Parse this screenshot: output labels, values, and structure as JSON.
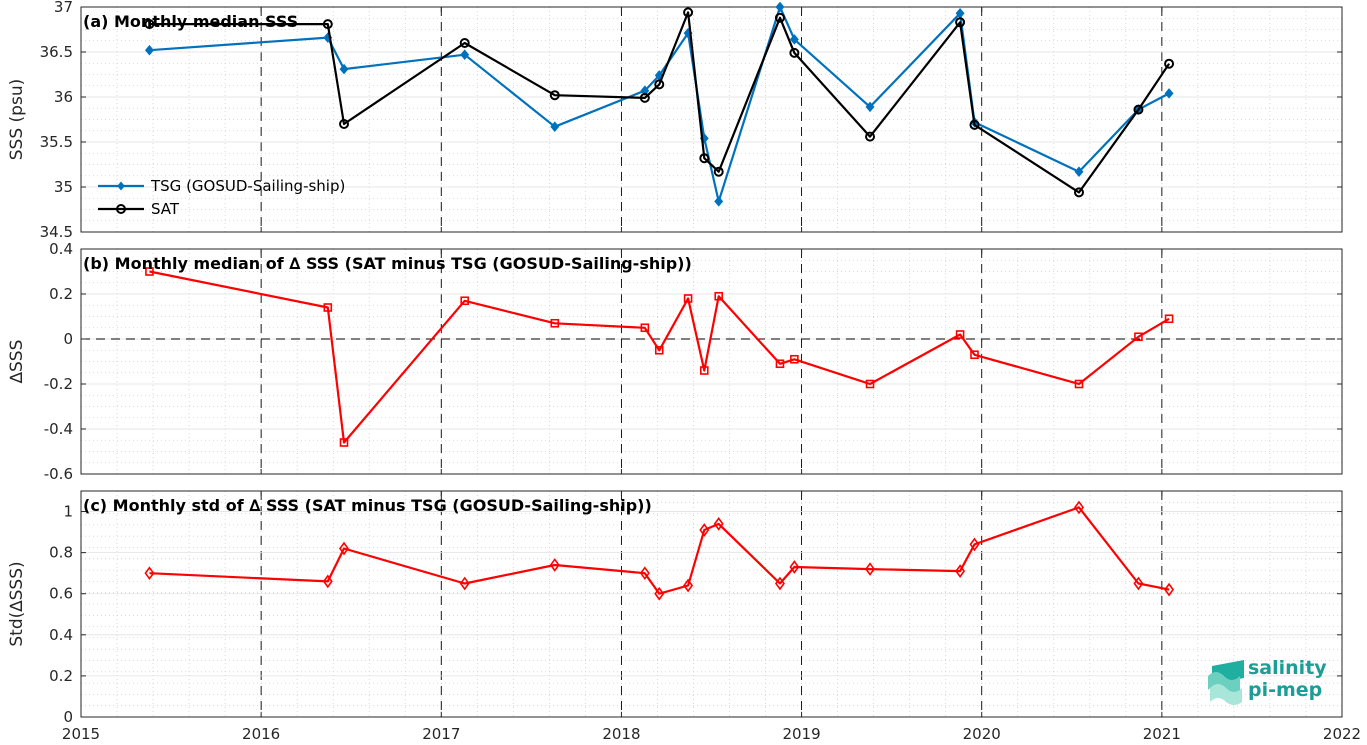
{
  "chart_data": [
    {
      "panel": "a",
      "type": "line",
      "title": "(a) Monthly median SSS",
      "ylabel": "SSS (psu)",
      "xlim": [
        2015,
        2022
      ],
      "ylim": [
        34.5,
        37
      ],
      "yticks": [
        34.5,
        35,
        35.5,
        36,
        36.5,
        37
      ],
      "ytick_labels": [
        "34.5",
        "35",
        "35.5",
        "36",
        "36.5",
        "37"
      ],
      "grid": true,
      "legend_position": "lower-left",
      "series": [
        {
          "name": "TSG (GOSUD-Sailing-ship)",
          "color": "#0072bd",
          "marker": "diamond-filled",
          "x": [
            2015.38,
            2016.37,
            2016.46,
            2017.13,
            2017.63,
            2018.13,
            2018.21,
            2018.37,
            2018.46,
            2018.54,
            2018.88,
            2018.96,
            2019.38,
            2019.88,
            2019.96,
            2020.54,
            2020.87,
            2021.04
          ],
          "y": [
            36.52,
            36.66,
            36.31,
            36.47,
            35.67,
            36.07,
            36.24,
            36.71,
            35.54,
            34.84,
            37.0,
            36.64,
            35.89,
            36.93,
            35.72,
            35.17,
            35.86,
            36.04
          ]
        },
        {
          "name": "SAT",
          "color": "#000000",
          "marker": "circle-open",
          "x": [
            2015.38,
            2016.37,
            2016.46,
            2017.13,
            2017.63,
            2018.13,
            2018.21,
            2018.37,
            2018.46,
            2018.54,
            2018.88,
            2018.96,
            2019.38,
            2019.88,
            2019.96,
            2020.54,
            2020.87,
            2021.04
          ],
          "y": [
            36.81,
            36.81,
            35.7,
            36.6,
            36.02,
            35.99,
            36.14,
            36.94,
            35.32,
            35.17,
            36.88,
            36.49,
            35.56,
            36.83,
            35.69,
            34.94,
            35.86,
            36.37
          ]
        }
      ]
    },
    {
      "panel": "b",
      "type": "line",
      "title": "(b) Monthly median of ∆ SSS (SAT minus TSG (GOSUD-Sailing-ship))",
      "ylabel": "∆SSS",
      "xlim": [
        2015,
        2022
      ],
      "ylim": [
        -0.6,
        0.4
      ],
      "yticks": [
        -0.6,
        -0.4,
        -0.2,
        0,
        0.2,
        0.4
      ],
      "ytick_labels": [
        "-0.6",
        "-0.4",
        "-0.2",
        "0",
        "0.2",
        "0.4"
      ],
      "grid": true,
      "zero_line": "dashed",
      "series": [
        {
          "color": "#ff0000",
          "marker": "square-open",
          "x": [
            2015.38,
            2016.37,
            2016.46,
            2017.13,
            2017.63,
            2018.13,
            2018.21,
            2018.37,
            2018.46,
            2018.54,
            2018.88,
            2018.96,
            2019.38,
            2019.88,
            2019.96,
            2020.54,
            2020.87,
            2021.04
          ],
          "y": [
            0.3,
            0.14,
            -0.46,
            0.17,
            0.07,
            0.05,
            -0.05,
            0.18,
            -0.14,
            0.19,
            -0.11,
            -0.09,
            -0.2,
            0.02,
            -0.07,
            -0.2,
            0.01,
            0.09
          ]
        }
      ]
    },
    {
      "panel": "c",
      "type": "line",
      "title": "(c) Monthly std of ∆ SSS (SAT minus TSG (GOSUD-Sailing-ship))",
      "ylabel": "Std(∆SSS)",
      "xlim": [
        2015,
        2022
      ],
      "ylim": [
        0,
        1.1
      ],
      "yticks": [
        0,
        0.2,
        0.4,
        0.6,
        0.8,
        1
      ],
      "ytick_labels": [
        "0",
        "0.2",
        "0.4",
        "0.6",
        "0.8",
        "1"
      ],
      "xticks": [
        2015,
        2016,
        2017,
        2018,
        2019,
        2020,
        2021,
        2022
      ],
      "xtick_labels": [
        "2015",
        "2016",
        "2017",
        "2018",
        "2019",
        "2020",
        "2021",
        "2022"
      ],
      "grid": true,
      "series": [
        {
          "color": "#ff0000",
          "marker": "diamond-open",
          "x": [
            2015.38,
            2016.37,
            2016.46,
            2017.13,
            2017.63,
            2018.13,
            2018.21,
            2018.37,
            2018.46,
            2018.54,
            2018.88,
            2018.96,
            2019.38,
            2019.88,
            2019.96,
            2020.54,
            2020.87,
            2021.04
          ],
          "y": [
            0.7,
            0.66,
            0.82,
            0.65,
            0.74,
            0.7,
            0.6,
            0.64,
            0.91,
            0.94,
            0.65,
            0.73,
            0.72,
            0.71,
            0.84,
            1.02,
            0.65,
            0.62
          ]
        }
      ]
    }
  ],
  "logo": {
    "line1": "salinity",
    "line2": "pi-mep",
    "color": "#1a9e96"
  }
}
